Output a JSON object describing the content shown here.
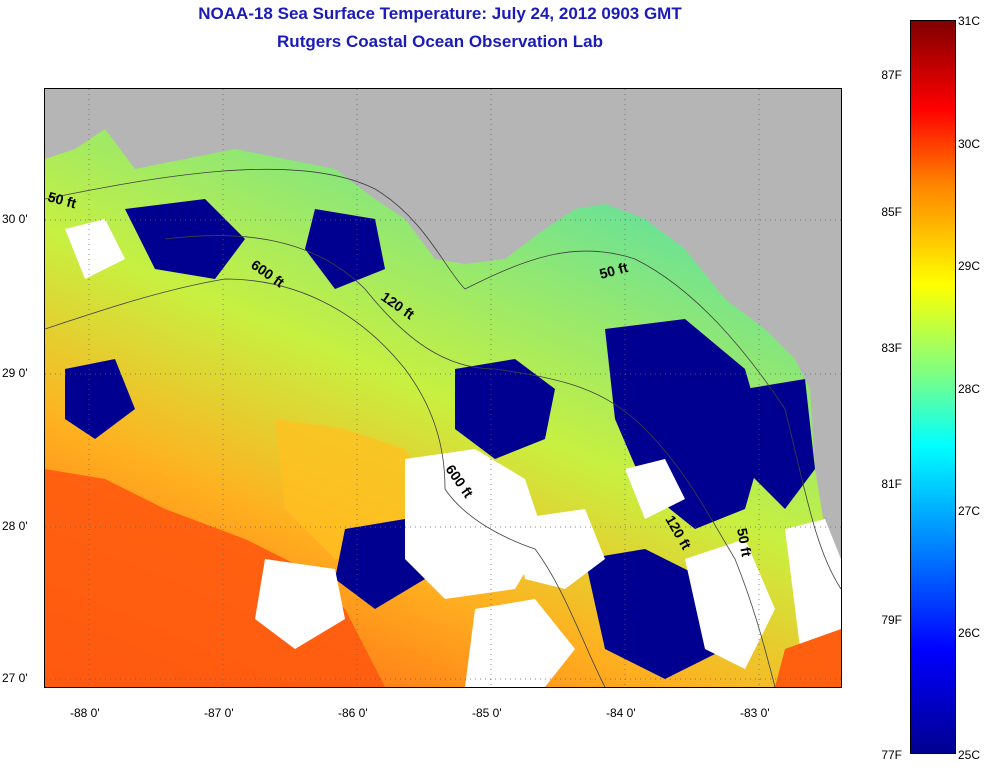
{
  "title": "NOAA-18 Sea Surface Temperature:  July 24, 2012 0903 GMT",
  "subtitle": "Rutgers Coastal Ocean Observation Lab",
  "lat_labels": [
    "30 0'",
    "29 0'",
    "28 0'",
    "27 0'"
  ],
  "lon_labels": [
    "-88 0'",
    "-87 0'",
    "-86 0'",
    "-85 0'",
    "-84 0'",
    "-83 0'"
  ],
  "contour_labels": [
    "50 ft",
    "600 ft",
    "120 ft",
    "50 ft",
    "600 ft",
    "120 ft",
    "50 ft"
  ],
  "colorbar": {
    "f_labels": [
      "87F",
      "85F",
      "83F",
      "81F",
      "79F",
      "77F"
    ],
    "c_labels": [
      "31C",
      "30C",
      "29C",
      "28C",
      "27C",
      "26C",
      "25C"
    ],
    "colors": [
      "#00008f",
      "#0000ff",
      "#0080ff",
      "#00ffff",
      "#ffff00",
      "#ff8000",
      "#ff0000",
      "#800000"
    ]
  },
  "map_colors": {
    "land": "#b5b5b5",
    "cloud": "#ffffff",
    "cold": "#000090",
    "warm": "#ff5a10"
  }
}
